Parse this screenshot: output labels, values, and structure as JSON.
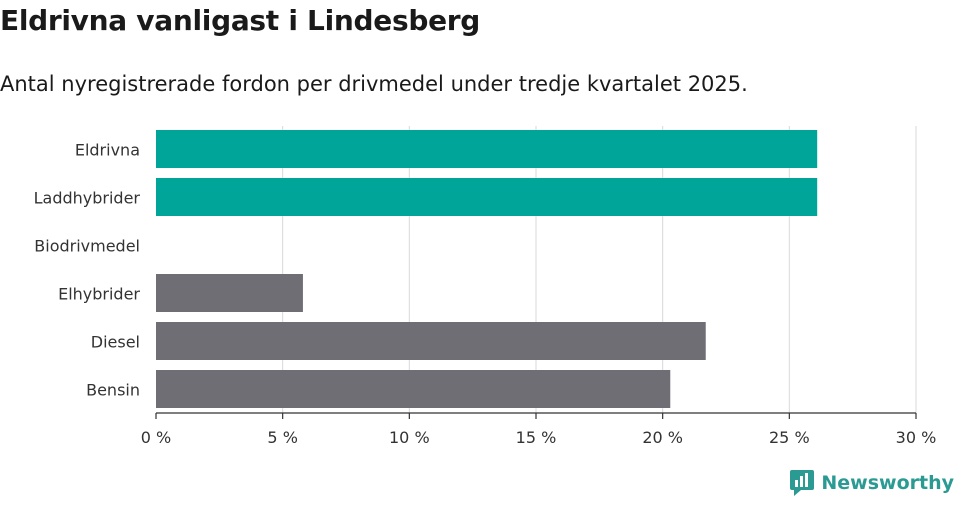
{
  "header": {
    "title": "Eldrivna vanligast i Lindesberg",
    "subtitle": "Antal nyregistrerade fordon per drivmedel under tredje kvartalet 2025."
  },
  "brand": {
    "name": "Newsworthy",
    "color": "#2a9a93"
  },
  "colors": {
    "highlight": "#00a59a",
    "default": "#706e75",
    "grid": "#d9d9d9",
    "axis": "#333333"
  },
  "chart_data": {
    "type": "bar",
    "orientation": "horizontal",
    "title": "Eldrivna vanligast i Lindesberg",
    "subtitle": "Antal nyregistrerade fordon per drivmedel under tredje kvartalet 2025.",
    "categories": [
      "Eldrivna",
      "Laddhybrider",
      "Biodrivmedel",
      "Elhybrider",
      "Diesel",
      "Bensin"
    ],
    "values": [
      26.1,
      26.1,
      0,
      5.8,
      21.7,
      20.3
    ],
    "highlighted": [
      true,
      true,
      false,
      false,
      false,
      false
    ],
    "xlim": [
      0,
      30
    ],
    "xticks": [
      0,
      5,
      10,
      15,
      20,
      25,
      30
    ],
    "xtick_labels": [
      "0 %",
      "5 %",
      "10 %",
      "15 %",
      "20 %",
      "25 %",
      "30 %"
    ],
    "xlabel": "",
    "ylabel": "",
    "grid": true,
    "legend": "none"
  }
}
